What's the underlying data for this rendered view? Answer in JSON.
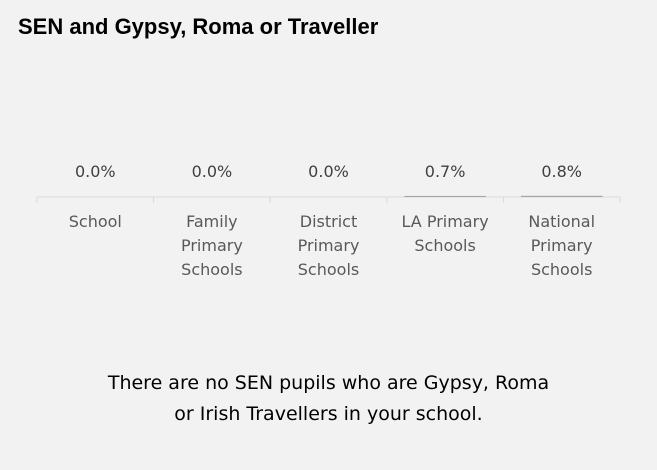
{
  "chart_data": {
    "type": "bar",
    "title": "SEN and Gypsy, Roma or Traveller",
    "categories": [
      "School",
      "Family Primary Schools",
      "District Primary Schools",
      "LA Primary Schools",
      "National Primary Schools"
    ],
    "values": [
      0,
      0,
      0,
      0.7,
      0.8
    ],
    "value_labels": [
      "0.0%",
      "0.0%",
      "0.0%",
      "0.7%",
      "0.8%"
    ],
    "color": "#a5a5a5",
    "annotation": "There are no SEN pupils who are Gypsy, Roma or Irish Travellers in your school."
  }
}
